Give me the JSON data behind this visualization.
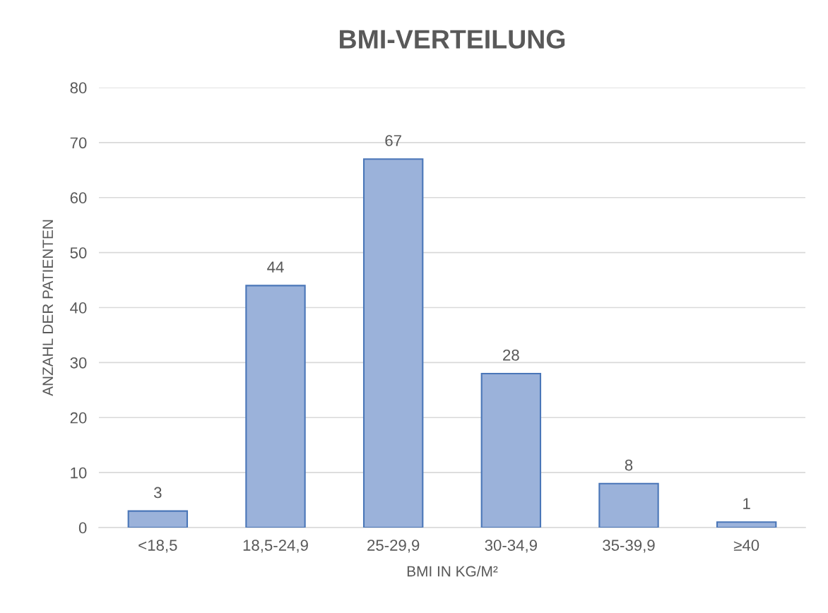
{
  "chart_data": {
    "type": "bar",
    "title": "BMI-VERTEILUNG",
    "xlabel": "BMI IN KG/M²",
    "ylabel": "ANZAHL DER PATIENTEN",
    "categories": [
      "<18,5",
      "18,5-24,9",
      "25-29,9",
      "30-34,9",
      "35-39,9",
      "≥40"
    ],
    "values": [
      3,
      44,
      67,
      28,
      8,
      1
    ],
    "color": "#9bb2da",
    "ylim": [
      0,
      80
    ],
    "yticks": [
      0,
      10,
      20,
      30,
      40,
      50,
      60,
      70,
      80
    ],
    "grid": "y",
    "data_labels": true
  }
}
